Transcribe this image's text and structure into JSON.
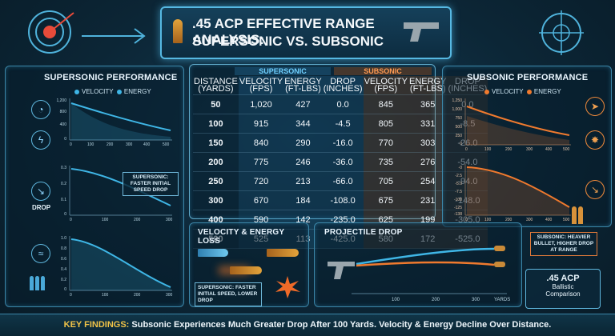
{
  "title": {
    "line1": ".45 ACP Effective Range Analysis:",
    "line2": "Supersonic vs. Subsonic"
  },
  "colors": {
    "supersonic": "#3fb6e6",
    "subsonic": "#f07a2e",
    "accent": "#e8c14a"
  },
  "left_panel": {
    "title": "Supersonic Performance",
    "legend": [
      "Velocity",
      "Energy"
    ],
    "chart1": {
      "yticks": [
        "1,200",
        "800",
        "400",
        "0"
      ],
      "xticks": [
        "0",
        "100",
        "200",
        "300",
        "400",
        "500"
      ]
    },
    "chart2": {
      "yticks": [
        "0.3",
        "0.2",
        "0.1",
        "0"
      ],
      "xticks": [
        "0",
        "100",
        "200",
        "300"
      ]
    },
    "drop_label": "Drop",
    "note": "Supersonic: Faster Initial Speed Drop",
    "chart3": {
      "yticks": [
        "1.0",
        "0.8",
        "0.6",
        "0.4",
        "0.2",
        "0"
      ],
      "xticks": [
        "0",
        "100",
        "200",
        "300"
      ]
    }
  },
  "right_panel": {
    "title": "Subsonic Performance",
    "legend": [
      "Velocity",
      "Energy"
    ],
    "chart1": {
      "yticks": [
        "1,250",
        "1,000",
        "750",
        "500",
        "250",
        "0"
      ],
      "xticks": [
        "0",
        "100",
        "200",
        "300",
        "400",
        "500"
      ]
    },
    "chart2": {
      "yticks": [
        "-0",
        "-2.5",
        "-5.0",
        "-7.5",
        "-100",
        "-125",
        "-138"
      ],
      "xticks": [
        "0",
        "100",
        "200",
        "300",
        "400",
        "500"
      ]
    },
    "note": "Subsonic: Heavier Bullet, Higher Drop at Range"
  },
  "table": {
    "group_super": "Supersonic",
    "group_sub": "Subsonic",
    "col_distance": [
      "Distance",
      "(Yards)"
    ],
    "cols": [
      [
        "Velocity",
        "(fps)"
      ],
      [
        "Energy",
        "(ft-lbs)"
      ],
      [
        "Drop",
        "(inches)"
      ]
    ],
    "rows": [
      {
        "d": "50",
        "sv": "1,020",
        "se": "427",
        "sd": "0.0",
        "bv": "845",
        "be": "365",
        "bd": "0.0"
      },
      {
        "d": "100",
        "sv": "915",
        "se": "344",
        "sd": "-4.5",
        "bv": "805",
        "be": "331",
        "bd": "-8.5"
      },
      {
        "d": "150",
        "sv": "840",
        "se": "290",
        "sd": "-16.0",
        "bv": "770",
        "be": "303",
        "bd": "-26.0"
      },
      {
        "d": "200",
        "sv": "775",
        "se": "246",
        "sd": "-36.0",
        "bv": "735",
        "be": "276",
        "bd": "-54.0"
      },
      {
        "d": "250",
        "sv": "720",
        "se": "213",
        "sd": "-66.0",
        "bv": "705",
        "be": "254",
        "bd": "-94.0"
      },
      {
        "d": "300",
        "sv": "670",
        "se": "184",
        "sd": "-108.0",
        "bv": "675",
        "be": "231",
        "bd": "-148.0"
      },
      {
        "d": "400",
        "sv": "590",
        "se": "142",
        "sd": "-235.0",
        "bv": "625",
        "be": "199",
        "bd": "-305.0"
      },
      {
        "d": "500",
        "sv": "525",
        "se": "113",
        "sd": "-425.0",
        "bv": "580",
        "be": "172",
        "bd": "-525.0"
      }
    ]
  },
  "velocity_panel": {
    "title": "Velocity & Energy Loss",
    "note": "Supersonic: Faster Initial Speed, Lower Drop"
  },
  "drop_panel": {
    "title": "Projectile Drop",
    "xticks": [
      "100",
      "200",
      "300",
      "Yards"
    ]
  },
  "badge": {
    "line1": ".45 ACP",
    "line2": "Ballistic",
    "line3": "Comparison"
  },
  "footer": {
    "label": "Key Findings:",
    "text": "Subsonic Experiences Much Greater Drop After 100 Yards. Velocity & Energy Decline Over Distance."
  }
}
